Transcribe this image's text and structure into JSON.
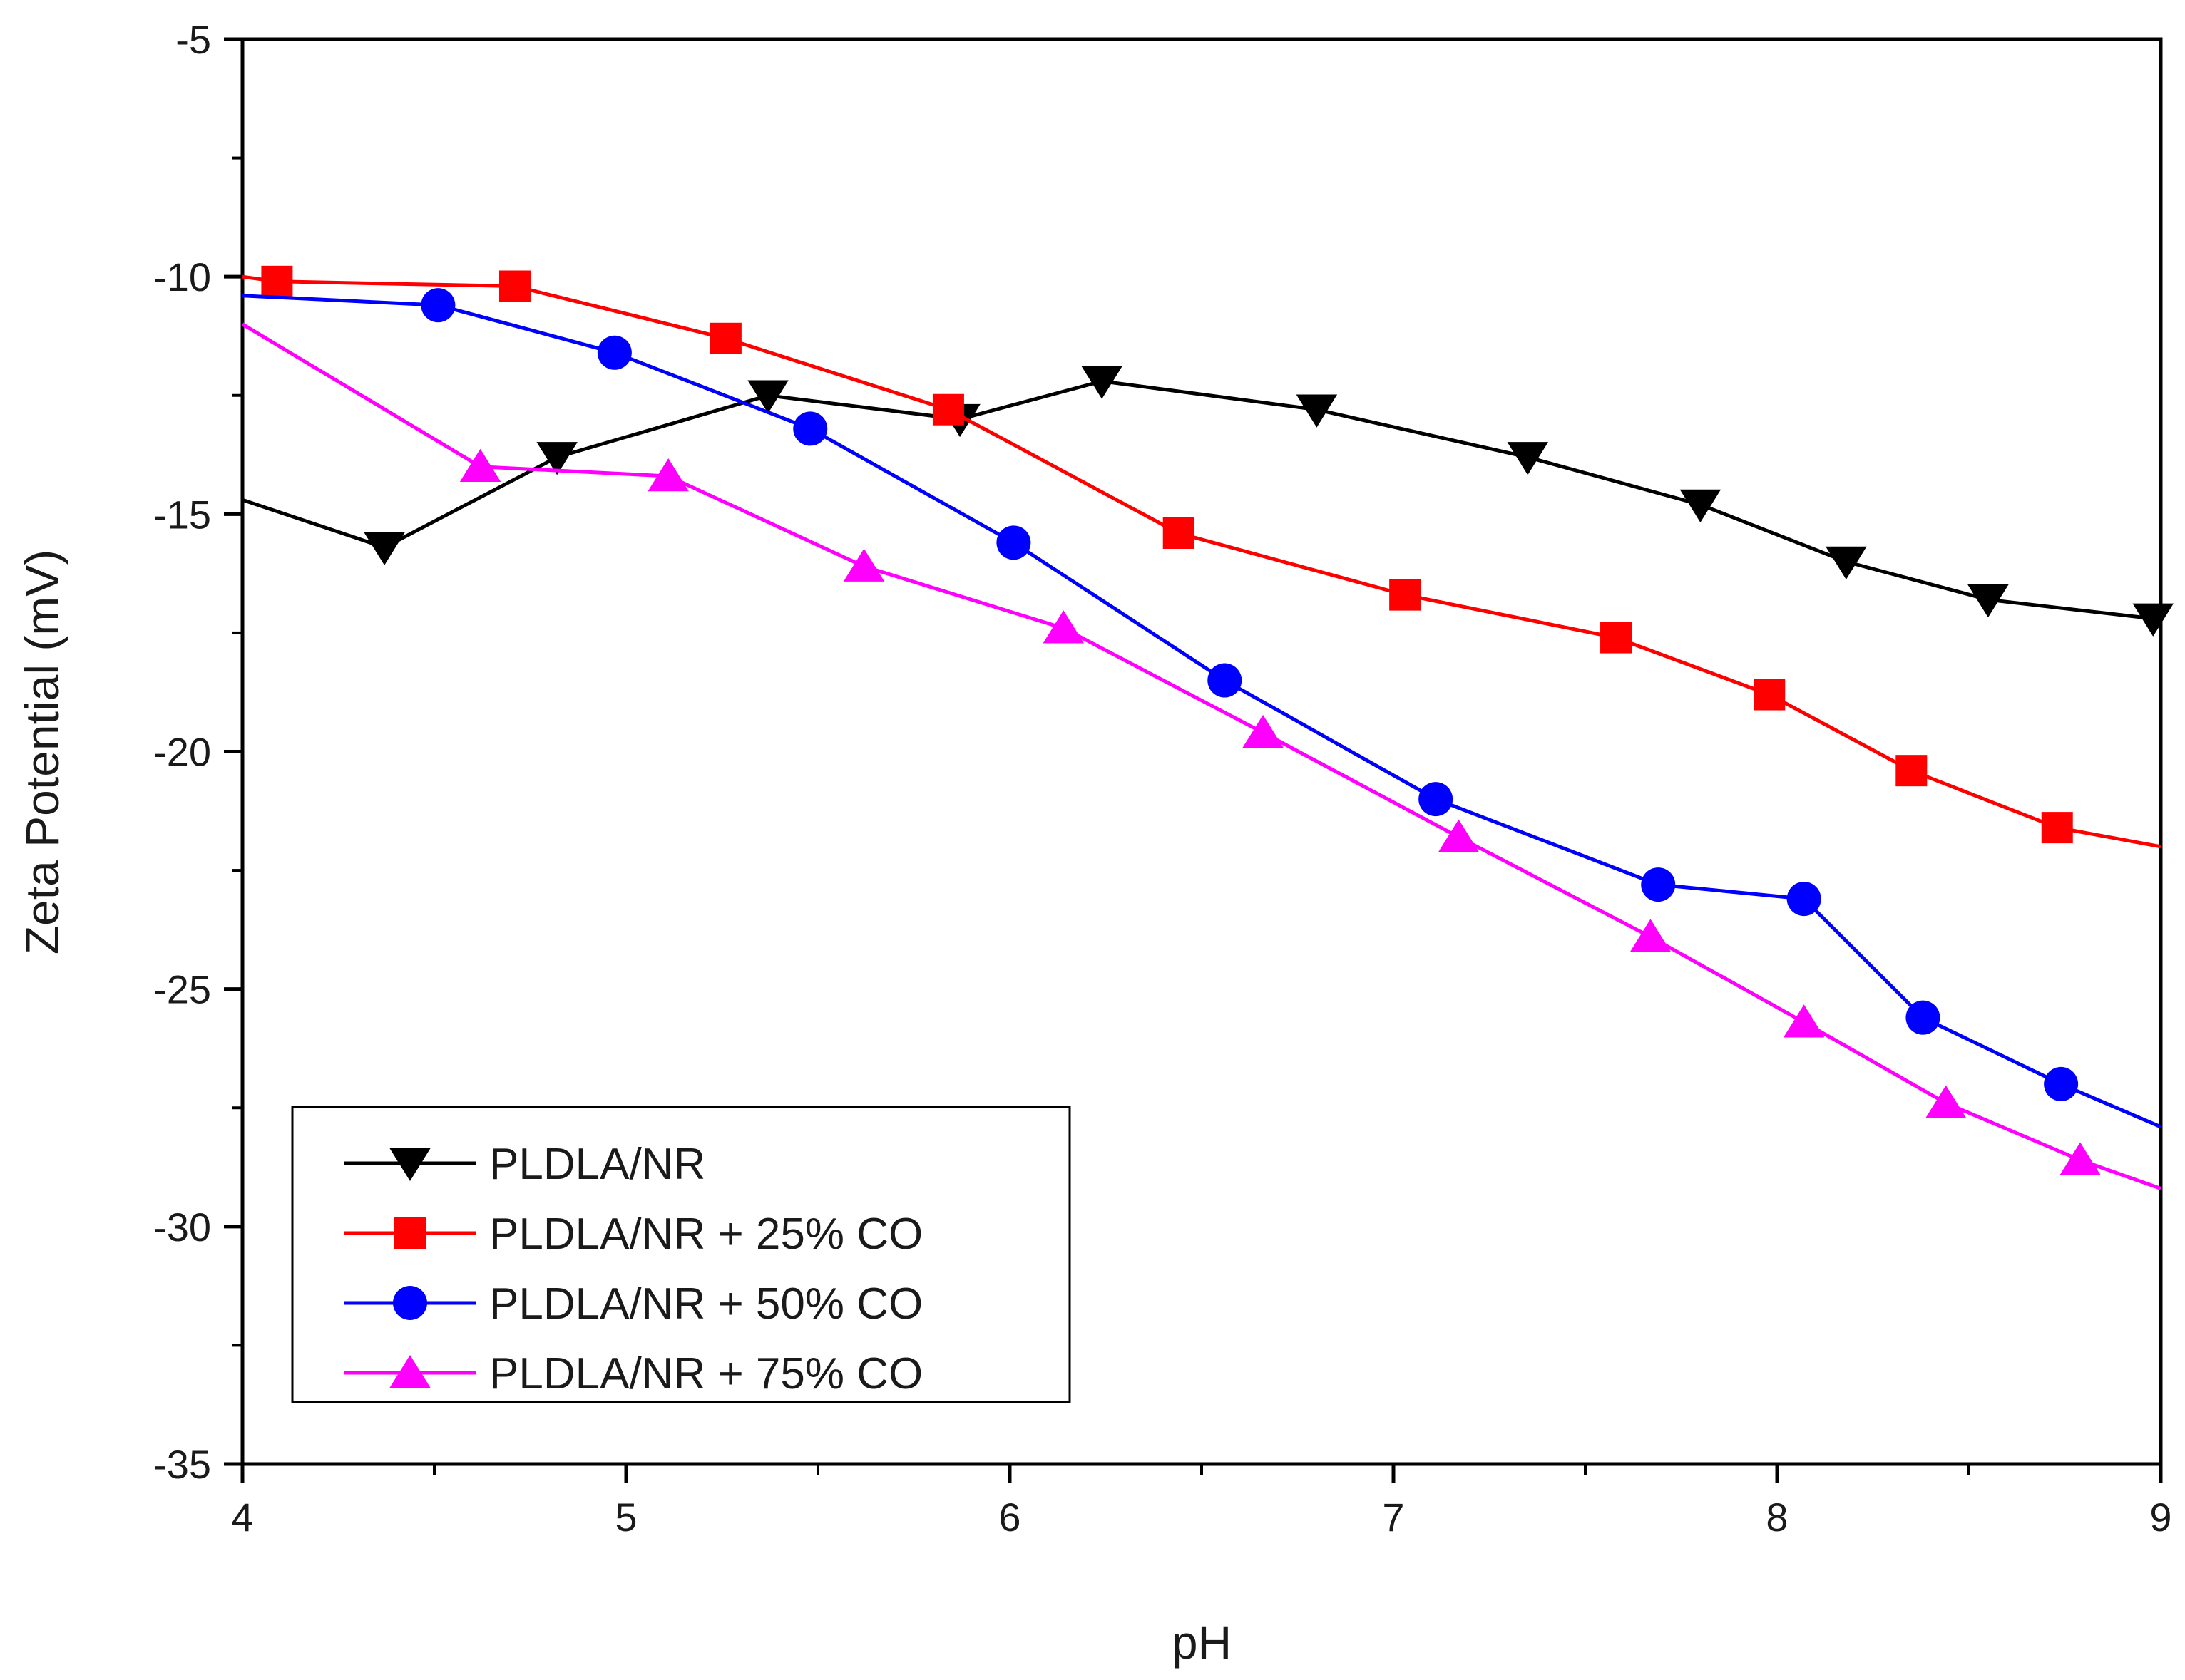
{
  "chart_data": {
    "type": "line",
    "title": "",
    "xlabel": "pH",
    "ylabel": "Zeta Potential (mV)",
    "xlim": [
      4,
      9
    ],
    "ylim": [
      -35,
      -5
    ],
    "xticks": [
      "4",
      "5",
      "6",
      "7",
      "8",
      "9"
    ],
    "yticks": [
      "-5",
      "-10",
      "-15",
      "-20",
      "-25",
      "-30",
      "-35"
    ],
    "legend_position": "bottom-left",
    "grid": false,
    "series": [
      {
        "name": "PLDLA/NR",
        "color": "#000000",
        "marker": "triangle-down",
        "x": [
          4.0,
          4.37,
          4.82,
          5.37,
          5.87,
          6.24,
          6.8,
          7.35,
          7.8,
          8.18,
          8.55,
          8.98,
          9.0
        ],
        "y": [
          -14.7,
          -15.7,
          -13.8,
          -12.5,
          -13.0,
          -12.2,
          -12.8,
          -13.8,
          -14.8,
          -16.0,
          -16.8,
          -17.2,
          -17.2
        ],
        "markers": [
          false,
          true,
          true,
          true,
          true,
          true,
          true,
          true,
          true,
          true,
          true,
          true,
          false
        ]
      },
      {
        "name": "PLDLA/NR + 25% CO",
        "color": "#ff0000",
        "marker": "square",
        "x": [
          4.0,
          4.09,
          4.71,
          5.26,
          5.84,
          6.44,
          7.03,
          7.58,
          7.98,
          8.35,
          8.73,
          9.0
        ],
        "y": [
          -10.0,
          -10.1,
          -10.2,
          -11.3,
          -12.8,
          -15.4,
          -16.7,
          -17.6,
          -18.8,
          -20.4,
          -21.6,
          -22.0
        ],
        "markers": [
          false,
          true,
          true,
          true,
          true,
          true,
          true,
          true,
          true,
          true,
          true,
          false
        ]
      },
      {
        "name": "PLDLA/NR + 50% CO",
        "color": "#0000ff",
        "marker": "circle",
        "x": [
          4.0,
          4.51,
          4.97,
          5.48,
          6.01,
          6.56,
          7.11,
          7.69,
          8.07,
          8.38,
          8.74,
          9.0
        ],
        "y": [
          -10.4,
          -10.6,
          -11.6,
          -13.2,
          -15.6,
          -18.5,
          -21.0,
          -22.8,
          -23.1,
          -25.6,
          -27.0,
          -27.9
        ],
        "markers": [
          false,
          true,
          true,
          true,
          true,
          true,
          true,
          true,
          true,
          true,
          true,
          false
        ]
      },
      {
        "name": "PLDLA/NR + 75% CO",
        "color": "#ff00ff",
        "marker": "triangle-up",
        "x": [
          4.0,
          4.62,
          5.11,
          5.62,
          6.14,
          6.66,
          7.17,
          7.67,
          8.07,
          8.44,
          8.79,
          9.0
        ],
        "y": [
          -11.0,
          -14.0,
          -14.2,
          -16.1,
          -17.4,
          -19.6,
          -21.8,
          -23.9,
          -25.7,
          -27.4,
          -28.6,
          -29.2
        ],
        "markers": [
          false,
          true,
          true,
          true,
          true,
          true,
          true,
          true,
          true,
          true,
          true,
          false
        ]
      }
    ]
  }
}
